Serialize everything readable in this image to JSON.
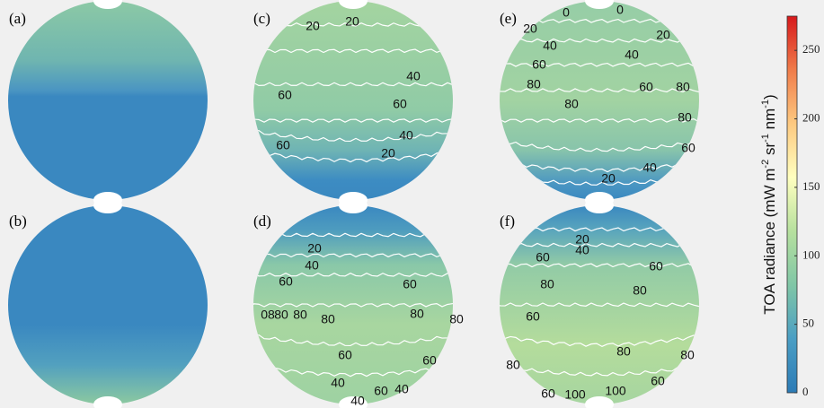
{
  "chart_data": {
    "type": "heatmap",
    "panels": [
      {
        "label": "(a)",
        "contour_labels": []
      },
      {
        "label": "(b)",
        "contour_labels": []
      },
      {
        "label": "(c)",
        "contour_labels": [
          20,
          20,
          40,
          60,
          60,
          60,
          40,
          20
        ]
      },
      {
        "label": "(d)",
        "contour_labels": [
          20,
          40,
          60,
          60,
          {
            "value": 80,
            "label": "08"
          },
          80,
          80,
          80,
          80,
          80,
          60,
          60,
          40,
          60,
          40,
          40
        ]
      },
      {
        "label": "(e)",
        "contour_labels": [
          0,
          0,
          20,
          20,
          40,
          40,
          60,
          60,
          80,
          80,
          80,
          80,
          60,
          40,
          20
        ]
      },
      {
        "label": "(f)",
        "contour_labels": [
          20,
          40,
          60,
          60,
          80,
          80,
          60,
          80,
          80,
          80,
          60,
          60,
          100,
          100
        ]
      }
    ],
    "colorbar": {
      "label_parts": [
        "TOA radiance (mW m",
        "-2",
        " sr",
        "-1",
        " nm",
        "-1",
        ")"
      ],
      "clim": [
        0,
        275
      ],
      "ticks": [
        0,
        50,
        100,
        150,
        200,
        250
      ],
      "colors": [
        "#2c7bb6",
        "#4a9ec4",
        "#80c6a6",
        "#b6e09e",
        "#ffffbf",
        "#fdc980",
        "#f07c4a",
        "#d7191c"
      ]
    }
  }
}
